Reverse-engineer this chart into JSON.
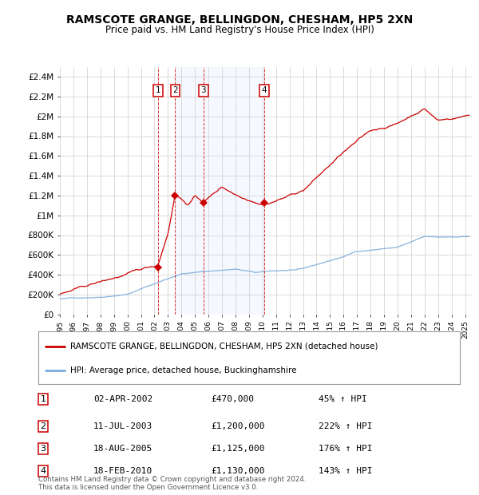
{
  "title": "RAMSCOTE GRANGE, BELLINGDON, CHESHAM, HP5 2XN",
  "subtitle": "Price paid vs. HM Land Registry's House Price Index (HPI)",
  "ylim": [
    0,
    2500000
  ],
  "yticks": [
    0,
    200000,
    400000,
    600000,
    800000,
    1000000,
    1200000,
    1400000,
    1600000,
    1800000,
    2000000,
    2200000,
    2400000
  ],
  "ytick_labels": [
    "£0",
    "£200K",
    "£400K",
    "£600K",
    "£800K",
    "£1M",
    "£1.2M",
    "£1.4M",
    "£1.6M",
    "£1.8M",
    "£2M",
    "£2.2M",
    "£2.4M"
  ],
  "xlim_start": 1995.0,
  "xlim_end": 2025.5,
  "hpi_color": "#7aaadd",
  "price_color": "#cc0000",
  "sale_marker_color": "#cc0000",
  "transactions": [
    {
      "num": 1,
      "date_str": "02-APR-2002",
      "year": 2002.25,
      "price": 470000,
      "label": "45% ↑ HPI"
    },
    {
      "num": 2,
      "date_str": "11-JUL-2003",
      "year": 2003.54,
      "price": 1200000,
      "label": "222% ↑ HPI"
    },
    {
      "num": 3,
      "date_str": "18-AUG-2005",
      "year": 2005.63,
      "price": 1125000,
      "label": "176% ↑ HPI"
    },
    {
      "num": 4,
      "date_str": "18-FEB-2010",
      "year": 2010.13,
      "price": 1130000,
      "label": "143% ↑ HPI"
    }
  ],
  "legend_label_red": "RAMSCOTE GRANGE, BELLINGDON, CHESHAM, HP5 2XN (detached house)",
  "legend_label_blue": "HPI: Average price, detached house, Buckinghamshire",
  "footnote": "Contains HM Land Registry data © Crown copyright and database right 2024.\nThis data is licensed under the Open Government Licence v3.0.",
  "shade_color": "#cce0ff",
  "background_color": "#ffffff"
}
